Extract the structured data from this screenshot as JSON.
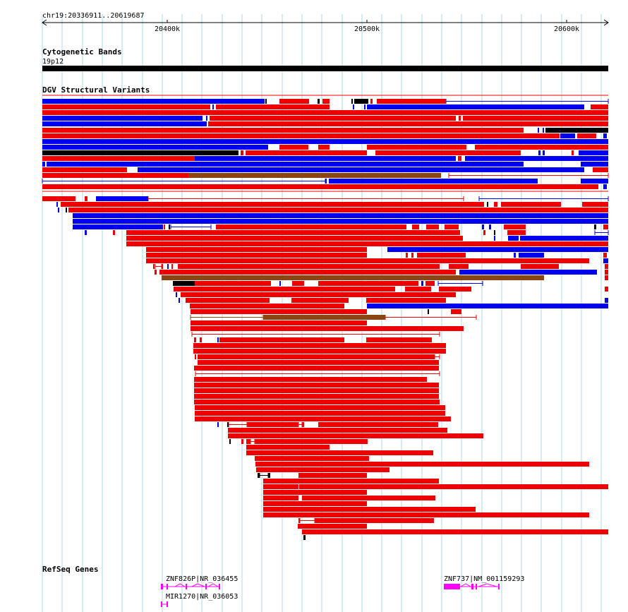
{
  "browser": {
    "ruler": {
      "position_label": "chr19:20336911..20619687",
      "ticks": [
        "20400k",
        "20500k",
        "20600k"
      ]
    },
    "tracks": {
      "cytoband": {
        "title": "Cytogenetic Bands",
        "band_label": "19p12"
      },
      "dgv": {
        "title": "DGV Structural Variants"
      },
      "refseq": {
        "title": "RefSeq Genes",
        "genes": [
          {
            "label": "ZNF826P|NR_036455"
          },
          {
            "label": "MIR1270|NR_036053"
          },
          {
            "label": "ZNF737|NM_001159293"
          }
        ]
      }
    },
    "colors": {
      "gain": "#ee0000",
      "loss": "#0000ee",
      "both": "#000000",
      "inversion": "#8b4513",
      "gene": "#ff00ff",
      "grid": "#add8e6"
    }
  }
}
